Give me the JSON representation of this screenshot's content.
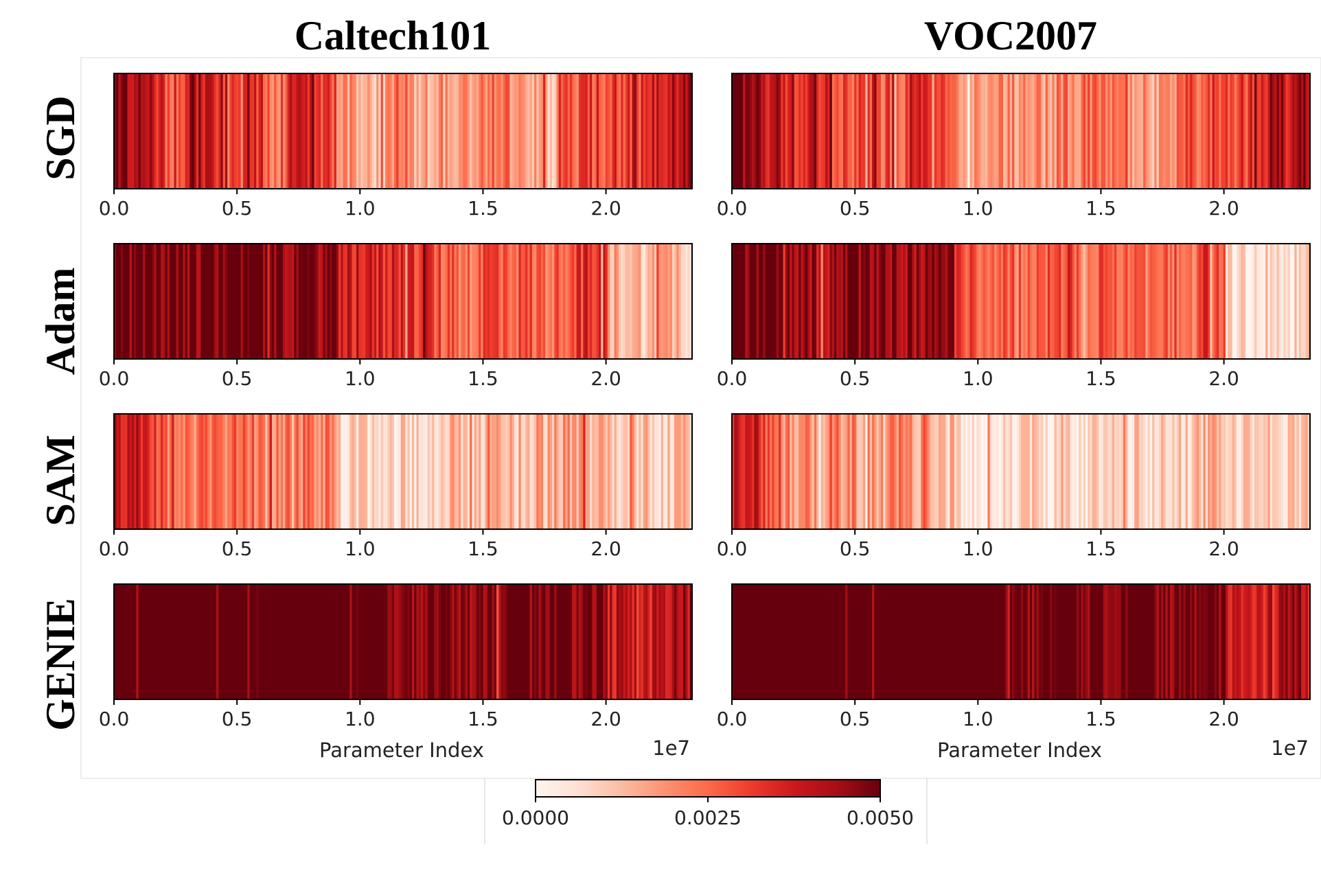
{
  "chart_data": {
    "type": "heatmap",
    "description_columns": [
      "Caltech101",
      "VOC2007"
    ],
    "rows": [
      "SGD",
      "Adam",
      "SAM",
      "GENIE"
    ],
    "xlabel": "Parameter Index",
    "x_scale_label": "1e7",
    "x_ticks": [
      0.0,
      0.5,
      1.0,
      1.5,
      2.0
    ],
    "x_tick_labels": [
      "0.0",
      "0.5",
      "1.0",
      "1.5",
      "2.0"
    ],
    "xlim": [
      0,
      2.35
    ],
    "colormap": "Reds",
    "colorbar": {
      "min": 0.0,
      "max": 0.005,
      "tick_labels": [
        "0.0000",
        "0.0025",
        "0.0050"
      ],
      "placement": "bottom-center"
    },
    "panels": [
      {
        "dataset": "Caltech101",
        "optimizer": "SGD",
        "segments": [
          [
            0.0,
            0.85
          ],
          [
            0.1,
            0.75
          ],
          [
            0.2,
            0.6
          ],
          [
            0.3,
            0.8
          ],
          [
            0.4,
            0.55
          ],
          [
            0.5,
            0.7
          ],
          [
            0.6,
            0.5
          ],
          [
            0.7,
            0.75
          ],
          [
            0.8,
            0.6
          ],
          [
            0.9,
            0.35
          ],
          [
            1.0,
            0.3
          ],
          [
            1.1,
            0.45
          ],
          [
            1.2,
            0.3
          ],
          [
            1.3,
            0.35
          ],
          [
            1.4,
            0.4
          ],
          [
            1.5,
            0.45
          ],
          [
            1.6,
            0.35
          ],
          [
            1.7,
            0.3
          ],
          [
            1.8,
            0.55
          ],
          [
            1.9,
            0.6
          ],
          [
            2.0,
            0.65
          ],
          [
            2.1,
            0.7
          ],
          [
            2.2,
            0.8
          ],
          [
            2.3,
            0.9
          ]
        ]
      },
      {
        "dataset": "VOC2007",
        "optimizer": "SGD",
        "segments": [
          [
            0.0,
            0.9
          ],
          [
            0.1,
            0.8
          ],
          [
            0.2,
            0.65
          ],
          [
            0.3,
            0.75
          ],
          [
            0.4,
            0.55
          ],
          [
            0.5,
            0.65
          ],
          [
            0.6,
            0.55
          ],
          [
            0.7,
            0.7
          ],
          [
            0.8,
            0.6
          ],
          [
            0.9,
            0.4
          ],
          [
            1.0,
            0.35
          ],
          [
            1.1,
            0.4
          ],
          [
            1.2,
            0.35
          ],
          [
            1.3,
            0.4
          ],
          [
            1.4,
            0.45
          ],
          [
            1.5,
            0.5
          ],
          [
            1.6,
            0.4
          ],
          [
            1.7,
            0.35
          ],
          [
            1.8,
            0.55
          ],
          [
            1.9,
            0.6
          ],
          [
            2.0,
            0.6
          ],
          [
            2.1,
            0.7
          ],
          [
            2.2,
            0.8
          ],
          [
            2.3,
            0.95
          ]
        ]
      },
      {
        "dataset": "Caltech101",
        "optimizer": "Adam",
        "segments": [
          [
            0.0,
            0.98
          ],
          [
            0.1,
            0.98
          ],
          [
            0.2,
            0.98
          ],
          [
            0.3,
            0.97
          ],
          [
            0.4,
            0.98
          ],
          [
            0.5,
            0.97
          ],
          [
            0.6,
            0.98
          ],
          [
            0.7,
            0.95
          ],
          [
            0.8,
            0.92
          ],
          [
            0.9,
            0.75
          ],
          [
            1.0,
            0.7
          ],
          [
            1.1,
            0.72
          ],
          [
            1.2,
            0.65
          ],
          [
            1.3,
            0.55
          ],
          [
            1.4,
            0.5
          ],
          [
            1.5,
            0.6
          ],
          [
            1.6,
            0.55
          ],
          [
            1.7,
            0.5
          ],
          [
            1.8,
            0.6
          ],
          [
            1.9,
            0.65
          ],
          [
            2.0,
            0.3
          ],
          [
            2.1,
            0.25
          ],
          [
            2.2,
            0.3
          ],
          [
            2.3,
            0.25
          ]
        ]
      },
      {
        "dataset": "VOC2007",
        "optimizer": "Adam",
        "segments": [
          [
            0.0,
            0.98
          ],
          [
            0.1,
            0.97
          ],
          [
            0.2,
            0.95
          ],
          [
            0.3,
            0.85
          ],
          [
            0.4,
            0.9
          ],
          [
            0.5,
            0.88
          ],
          [
            0.6,
            0.9
          ],
          [
            0.7,
            0.88
          ],
          [
            0.8,
            0.9
          ],
          [
            0.9,
            0.6
          ],
          [
            1.0,
            0.55
          ],
          [
            1.1,
            0.5
          ],
          [
            1.2,
            0.55
          ],
          [
            1.3,
            0.6
          ],
          [
            1.4,
            0.5
          ],
          [
            1.5,
            0.55
          ],
          [
            1.6,
            0.5
          ],
          [
            1.7,
            0.55
          ],
          [
            1.8,
            0.5
          ],
          [
            1.9,
            0.6
          ],
          [
            2.0,
            0.1
          ],
          [
            2.1,
            0.15
          ],
          [
            2.2,
            0.12
          ],
          [
            2.3,
            0.15
          ]
        ]
      },
      {
        "dataset": "Caltech101",
        "optimizer": "SAM",
        "segments": [
          [
            0.0,
            0.8
          ],
          [
            0.1,
            0.6
          ],
          [
            0.2,
            0.5
          ],
          [
            0.3,
            0.45
          ],
          [
            0.4,
            0.5
          ],
          [
            0.5,
            0.45
          ],
          [
            0.6,
            0.4
          ],
          [
            0.7,
            0.45
          ],
          [
            0.8,
            0.4
          ],
          [
            0.9,
            0.15
          ],
          [
            1.0,
            0.12
          ],
          [
            1.1,
            0.15
          ],
          [
            1.2,
            0.2
          ],
          [
            1.3,
            0.25
          ],
          [
            1.4,
            0.2
          ],
          [
            1.5,
            0.3
          ],
          [
            1.6,
            0.25
          ],
          [
            1.7,
            0.3
          ],
          [
            1.8,
            0.35
          ],
          [
            1.9,
            0.3
          ],
          [
            2.0,
            0.2
          ],
          [
            2.1,
            0.25
          ],
          [
            2.2,
            0.2
          ],
          [
            2.3,
            0.25
          ]
        ]
      },
      {
        "dataset": "VOC2007",
        "optimizer": "SAM",
        "segments": [
          [
            0.0,
            0.75
          ],
          [
            0.1,
            0.55
          ],
          [
            0.2,
            0.4
          ],
          [
            0.3,
            0.35
          ],
          [
            0.4,
            0.4
          ],
          [
            0.5,
            0.35
          ],
          [
            0.6,
            0.4
          ],
          [
            0.7,
            0.35
          ],
          [
            0.8,
            0.3
          ],
          [
            0.9,
            0.1
          ],
          [
            1.0,
            0.08
          ],
          [
            1.1,
            0.1
          ],
          [
            1.2,
            0.15
          ],
          [
            1.3,
            0.2
          ],
          [
            1.4,
            0.15
          ],
          [
            1.5,
            0.25
          ],
          [
            1.6,
            0.2
          ],
          [
            1.7,
            0.25
          ],
          [
            1.8,
            0.2
          ],
          [
            1.9,
            0.25
          ],
          [
            2.0,
            0.15
          ],
          [
            2.1,
            0.2
          ],
          [
            2.2,
            0.15
          ],
          [
            2.3,
            0.2
          ]
        ]
      },
      {
        "dataset": "Caltech101",
        "optimizer": "GENIE",
        "segments": [
          [
            0.0,
            1.0
          ],
          [
            0.1,
            1.0
          ],
          [
            0.2,
            1.0
          ],
          [
            0.3,
            1.0
          ],
          [
            0.4,
            1.0
          ],
          [
            0.5,
            1.0
          ],
          [
            0.6,
            1.0
          ],
          [
            0.7,
            1.0
          ],
          [
            0.8,
            1.0
          ],
          [
            0.9,
            1.0
          ],
          [
            1.0,
            1.0
          ],
          [
            1.1,
            0.97
          ],
          [
            1.2,
            0.95
          ],
          [
            1.3,
            0.96
          ],
          [
            1.4,
            0.95
          ],
          [
            1.5,
            0.96
          ],
          [
            1.6,
            0.95
          ],
          [
            1.7,
            0.94
          ],
          [
            1.8,
            0.95
          ],
          [
            1.9,
            0.96
          ],
          [
            2.0,
            0.8
          ],
          [
            2.1,
            0.75
          ],
          [
            2.2,
            0.8
          ],
          [
            2.3,
            0.85
          ]
        ]
      },
      {
        "dataset": "VOC2007",
        "optimizer": "GENIE",
        "segments": [
          [
            0.0,
            1.0
          ],
          [
            0.1,
            1.0
          ],
          [
            0.2,
            1.0
          ],
          [
            0.3,
            1.0
          ],
          [
            0.4,
            1.0
          ],
          [
            0.5,
            1.0
          ],
          [
            0.6,
            1.0
          ],
          [
            0.7,
            1.0
          ],
          [
            0.8,
            1.0
          ],
          [
            0.9,
            0.99
          ],
          [
            1.0,
            0.99
          ],
          [
            1.1,
            0.98
          ],
          [
            1.2,
            0.98
          ],
          [
            1.3,
            0.99
          ],
          [
            1.4,
            0.98
          ],
          [
            1.5,
            0.98
          ],
          [
            1.6,
            0.99
          ],
          [
            1.7,
            0.98
          ],
          [
            1.8,
            0.97
          ],
          [
            1.9,
            0.97
          ],
          [
            2.0,
            0.8
          ],
          [
            2.1,
            0.75
          ],
          [
            2.2,
            0.8
          ],
          [
            2.3,
            0.85
          ]
        ]
      }
    ]
  }
}
